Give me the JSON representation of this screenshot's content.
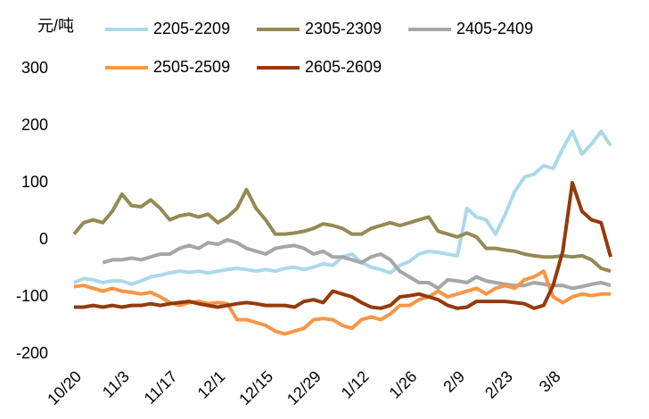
{
  "chart_data": {
    "type": "line",
    "y_label": "元/吨",
    "categories": [
      "10/20",
      null,
      null,
      null,
      null,
      "11/3",
      null,
      null,
      null,
      null,
      "11/17",
      null,
      null,
      null,
      null,
      "12/1",
      null,
      null,
      null,
      null,
      "12/15",
      null,
      null,
      null,
      null,
      "12/29",
      null,
      null,
      null,
      null,
      "1/12",
      null,
      null,
      null,
      null,
      "1/26",
      null,
      null,
      null,
      null,
      "2/9",
      null,
      null,
      null,
      null,
      "2/23",
      null,
      null,
      null,
      null,
      "3/8",
      null,
      null,
      null,
      null,
      null,
      null
    ],
    "ylim": [
      -200,
      300
    ],
    "yticks": [
      -200,
      -100,
      0,
      100,
      200,
      300
    ],
    "series": [
      {
        "name": "2205-2209",
        "color": "#abd9e9",
        "values": [
          -75,
          -68,
          -70,
          -75,
          -72,
          -72,
          -78,
          -72,
          -65,
          -62,
          -58,
          -55,
          -57,
          -55,
          -58,
          -55,
          -52,
          -50,
          -52,
          -55,
          -52,
          -55,
          -50,
          -48,
          -52,
          -48,
          -42,
          -45,
          -30,
          -25,
          -40,
          -48,
          -52,
          -58,
          -45,
          -38,
          -25,
          -20,
          -22,
          -25,
          -28,
          55,
          40,
          35,
          10,
          45,
          85,
          110,
          115,
          130,
          125,
          160,
          190,
          150,
          168,
          190,
          165
        ]
      },
      {
        "name": "2305-2309",
        "color": "#948a54",
        "values": [
          10,
          30,
          35,
          30,
          50,
          80,
          60,
          58,
          70,
          55,
          35,
          42,
          45,
          40,
          45,
          30,
          40,
          55,
          88,
          55,
          35,
          10,
          10,
          12,
          15,
          20,
          28,
          25,
          20,
          10,
          10,
          20,
          25,
          30,
          25,
          30,
          35,
          40,
          15,
          10,
          5,
          12,
          5,
          -15,
          -15,
          -18,
          -20,
          -25,
          -28,
          -30,
          -30,
          -28,
          -30,
          -28,
          -35,
          -50,
          -55
        ]
      },
      {
        "name": "2405-2409",
        "color": "#a6a6a6",
        "values": [
          null,
          null,
          null,
          -40,
          -35,
          -35,
          -32,
          -35,
          -30,
          -25,
          -25,
          -15,
          -10,
          -15,
          -5,
          -8,
          0,
          -5,
          -15,
          -20,
          -25,
          -15,
          -12,
          -10,
          -15,
          -25,
          -20,
          -30,
          -30,
          -35,
          -40,
          -30,
          -25,
          -35,
          -55,
          -65,
          -75,
          -75,
          -85,
          -70,
          -72,
          -75,
          -65,
          -72,
          -75,
          -78,
          -80,
          -80,
          -75,
          -78,
          -80,
          -80,
          -85,
          -82,
          -78,
          -75,
          -80
        ]
      },
      {
        "name": "2505-2509",
        "color": "#f79646",
        "values": [
          -82,
          -80,
          -85,
          -90,
          -85,
          -90,
          -92,
          -95,
          -92,
          -100,
          -110,
          -115,
          -110,
          -108,
          -112,
          -110,
          -112,
          -140,
          -140,
          -145,
          -150,
          -160,
          -165,
          -160,
          -155,
          -140,
          -138,
          -140,
          -150,
          -155,
          -140,
          -135,
          -140,
          -130,
          -115,
          -115,
          -105,
          -100,
          -90,
          -100,
          -95,
          -90,
          -85,
          -95,
          -85,
          -80,
          -85,
          -70,
          -65,
          -55,
          -100,
          -110,
          -100,
          -95,
          -98,
          -95,
          -95
        ]
      },
      {
        "name": "2605-2609",
        "color": "#953a0c",
        "values": [
          -118,
          -118,
          -115,
          -118,
          -115,
          -118,
          -115,
          -115,
          -112,
          -115,
          -112,
          -110,
          -108,
          -112,
          -115,
          -118,
          -115,
          -112,
          -110,
          -112,
          -115,
          -115,
          -115,
          -118,
          -108,
          -105,
          -110,
          -90,
          -95,
          -100,
          -110,
          -118,
          -120,
          -115,
          -100,
          -98,
          -95,
          -100,
          -105,
          -115,
          -120,
          -118,
          -108,
          -108,
          -108,
          -108,
          -110,
          -112,
          -120,
          -115,
          -80,
          -20,
          100,
          50,
          35,
          30,
          -30
        ]
      }
    ]
  }
}
